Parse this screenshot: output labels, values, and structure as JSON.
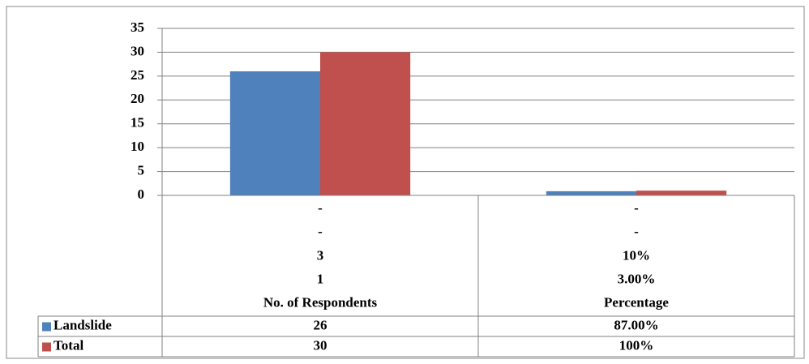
{
  "chart_data": {
    "type": "bar",
    "categories": [
      [
        "-",
        "-",
        "3",
        "1",
        "No. of Respondents"
      ],
      [
        "-",
        "-",
        "10%",
        "3.00%",
        "Percentage"
      ]
    ],
    "series": [
      {
        "name": "Landslide",
        "color": "#4f81bd",
        "values": [
          26,
          0.87
        ],
        "value_labels": [
          "26",
          "87.00%"
        ]
      },
      {
        "name": "Total",
        "color": "#c0504d",
        "values": [
          30,
          1
        ],
        "value_labels": [
          "30",
          "100%"
        ]
      }
    ],
    "ylim": [
      0,
      35
    ],
    "yticks": [
      0,
      5,
      10,
      15,
      20,
      25,
      30,
      35
    ],
    "grid": true
  }
}
